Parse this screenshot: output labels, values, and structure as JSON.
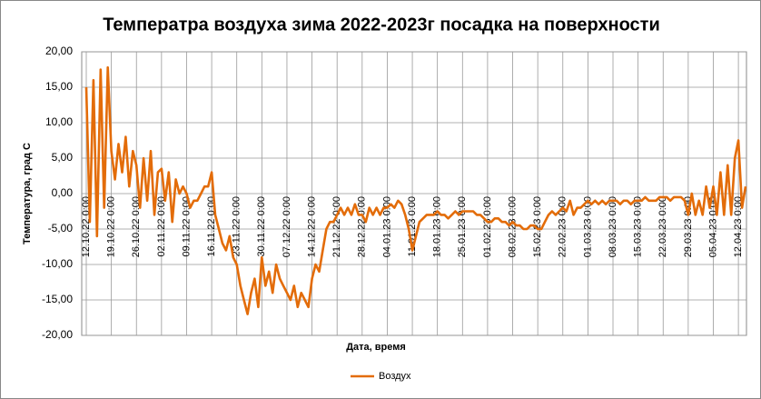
{
  "chart_data": {
    "type": "line",
    "title": "Температра воздуха зима 2022-2023г  посадка на поверхности",
    "x_label": "Дата, время",
    "y_label": "Температура, град С",
    "categories": [
      "12.10.22 0:00",
      null,
      null,
      null,
      null,
      null,
      null,
      "19.10.22 0:00",
      null,
      null,
      null,
      null,
      null,
      null,
      "26.10.22 0:00",
      null,
      null,
      null,
      null,
      null,
      null,
      "02.11.22 0:00",
      null,
      null,
      null,
      null,
      null,
      null,
      "09.11.22 0:00",
      null,
      null,
      null,
      null,
      null,
      null,
      "16.11.22 0:00",
      null,
      null,
      null,
      null,
      null,
      null,
      "23.11.22 0:00",
      null,
      null,
      null,
      null,
      null,
      null,
      "30.11.22 0:00",
      null,
      null,
      null,
      null,
      null,
      null,
      "07.12.22 0:00",
      null,
      null,
      null,
      null,
      null,
      null,
      "14.12.22 0:00",
      null,
      null,
      null,
      null,
      null,
      null,
      "21.12.22 0:00",
      null,
      null,
      null,
      null,
      null,
      null,
      "28.12.22 0:00",
      null,
      null,
      null,
      null,
      null,
      null,
      "04.01.23 0:00",
      null,
      null,
      null,
      null,
      null,
      null,
      "11.01.23 0:00",
      null,
      null,
      null,
      null,
      null,
      null,
      "18.01.23 0:00",
      null,
      null,
      null,
      null,
      null,
      null,
      "25.01.23 0:00",
      null,
      null,
      null,
      null,
      null,
      null,
      "01.02.23 0:00",
      null,
      null,
      null,
      null,
      null,
      null,
      "08.02.23 0:00",
      null,
      null,
      null,
      null,
      null,
      null,
      "15.02.23 0:00",
      null,
      null,
      null,
      null,
      null,
      null,
      "22.02.23 0:00",
      null,
      null,
      null,
      null,
      null,
      null,
      "01.03.23 0:00",
      null,
      null,
      null,
      null,
      null,
      null,
      "08.03.23 0:00",
      null,
      null,
      null,
      null,
      null,
      null,
      "15.03.23 0:00",
      null,
      null,
      null,
      null,
      null,
      null,
      "22.03.23 0:00",
      null,
      null,
      null,
      null,
      null,
      null,
      "29.03.23 0:00",
      null,
      null,
      null,
      null,
      null,
      null,
      "05.04.23 0:00",
      null,
      null,
      null,
      null,
      null,
      null,
      "12.04.23 0:00",
      null,
      null
    ],
    "series": [
      {
        "name": "Воздух",
        "color": "#e36c09",
        "values": [
          15,
          -4,
          16,
          -6,
          17.5,
          -2,
          17.8,
          6,
          2,
          7,
          3,
          8,
          1,
          6,
          4,
          -2,
          5,
          -1,
          6,
          -3,
          3,
          3.5,
          -1,
          3,
          -4,
          2,
          0,
          1,
          0,
          -2,
          -1,
          -1,
          0,
          1,
          1,
          3,
          -3,
          -5,
          -7,
          -8,
          -6,
          -9,
          -10,
          -13,
          -15,
          -17,
          -14,
          -12,
          -16,
          -9,
          -13,
          -11,
          -14,
          -10,
          -12,
          -13,
          -14,
          -15,
          -13,
          -16,
          -14,
          -15,
          -16,
          -12,
          -10,
          -11,
          -8,
          -5,
          -4,
          -4,
          -3,
          -2,
          -3,
          -2,
          -3,
          -1.5,
          -3,
          -3,
          -4,
          -2,
          -3,
          -2,
          -3,
          -2,
          -2,
          -1.5,
          -2,
          -1,
          -1.5,
          -3,
          -5,
          -8,
          -6,
          -4,
          -3.5,
          -3,
          -3,
          -3,
          -2.5,
          -3,
          -3,
          -3.5,
          -3,
          -2.5,
          -3,
          -2.5,
          -2.5,
          -2.5,
          -2.5,
          -3,
          -3,
          -3.5,
          -4,
          -4,
          -3.5,
          -3.5,
          -4,
          -4,
          -4.5,
          -4,
          -4.5,
          -4.5,
          -5,
          -5,
          -4.5,
          -4.5,
          -5,
          -5,
          -4,
          -3,
          -2.5,
          -3,
          -2.5,
          -2,
          -2.5,
          -1,
          -3,
          -2,
          -2,
          -1.5,
          -1,
          -1.5,
          -1,
          -1.5,
          -1,
          -1.5,
          -1,
          -1,
          -1,
          -1.5,
          -1,
          -1,
          -1.5,
          -1,
          -1,
          -1,
          -0.5,
          -1,
          -1,
          -1,
          -0.5,
          -0.5,
          -0.5,
          -1,
          -0.5,
          -0.5,
          -0.5,
          -1,
          -3,
          0,
          -3,
          -1,
          -3,
          1,
          -2,
          1,
          -3,
          3,
          -3,
          4,
          -3,
          5,
          7.5,
          -2,
          1
        ]
      }
    ],
    "ylim": [
      -20,
      20
    ],
    "yticks": [
      {
        "value": -20,
        "label": "-20,00"
      },
      {
        "value": -15,
        "label": "-15,00"
      },
      {
        "value": -10,
        "label": "-10,00"
      },
      {
        "value": -5,
        "label": "-5,00"
      },
      {
        "value": 0,
        "label": "0,00"
      },
      {
        "value": 5,
        "label": "5,00"
      },
      {
        "value": 10,
        "label": "10,00"
      },
      {
        "value": 15,
        "label": "15,00"
      },
      {
        "value": 20,
        "label": "20,00"
      }
    ],
    "grid": true,
    "legend": "bottom"
  }
}
